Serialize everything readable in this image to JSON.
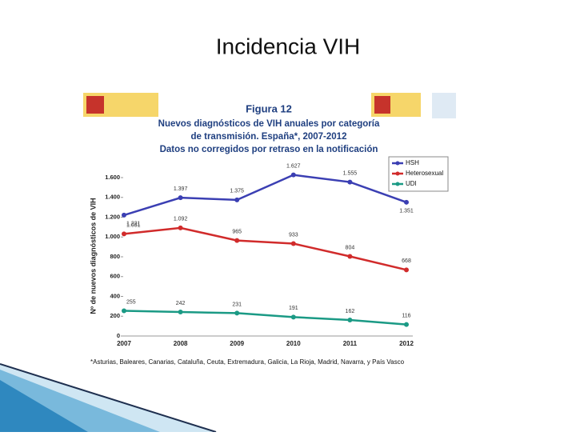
{
  "slide_title": "Incidencia VIH",
  "chart_data": {
    "type": "line",
    "title": "Figura 12",
    "subtitle_lines": [
      "Nuevos diagnósticos de VIH anuales por categoría",
      "de transmisión. España*, 2007-2012",
      "Datos no corregidos por retraso en la notificación"
    ],
    "y_label": "Nº de nuevos diagnósticos de VIH",
    "footnote": "*Asturias, Baleares, Canarias, Cataluña, Ceuta, Extremadura, Galicia, La Rioja, Madrid, Navarra, y País Vasco",
    "categories": [
      "2007",
      "2008",
      "2009",
      "2010",
      "2011",
      "2012"
    ],
    "series": [
      {
        "name": "HSH",
        "color": "#3b3fb3",
        "values": [
          1221,
          1397,
          1375,
          1627,
          1555,
          1351
        ],
        "value_labels": [
          "1.221",
          "1.397",
          "1.375",
          "1.627",
          "1.555",
          "1.351"
        ]
      },
      {
        "name": "Heterosexual",
        "color": "#d12b2b",
        "values": [
          1031,
          1092,
          965,
          933,
          804,
          668
        ],
        "value_labels": [
          "1.031",
          "1.092",
          "965",
          "933",
          "804",
          "668"
        ]
      },
      {
        "name": "UDI",
        "color": "#1b9a85",
        "values": [
          255,
          242,
          231,
          191,
          162,
          116
        ]
      }
    ],
    "ylim": [
      0,
      1600
    ],
    "yticks": [
      0,
      200,
      400,
      600,
      800,
      {
        "value": 1000,
        "label": "1.000"
      },
      {
        "value": 1200,
        "label": "1.200"
      },
      {
        "value": 1400,
        "label": "1.400"
      },
      {
        "value": 1600,
        "label": "1.600"
      }
    ],
    "legend": "top-right"
  }
}
